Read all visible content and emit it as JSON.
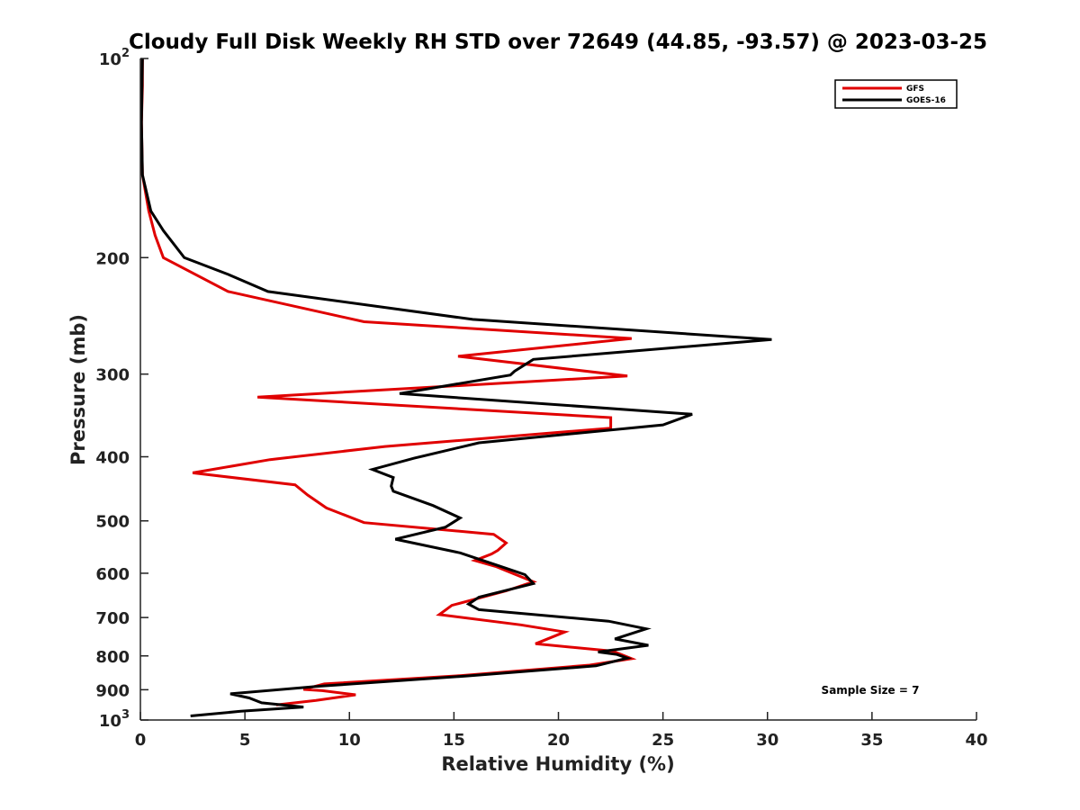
{
  "chart_data": {
    "type": "line",
    "title": "Cloudy Full Disk Weekly RH STD over 72649 (44.85, -93.57) @ 2023-03-25",
    "xlabel": "Relative Humidity (%)",
    "ylabel": "Pressure (mb)",
    "xlim": [
      0,
      40
    ],
    "ylim": [
      100,
      1000
    ],
    "y_scale": "log",
    "y_reversed": true,
    "x_ticks": [
      "0",
      "5",
      "10",
      "15",
      "20",
      "25",
      "30",
      "35",
      "40"
    ],
    "y_ticks": [
      {
        "value": 100,
        "base": "10",
        "exp": "2"
      },
      {
        "value": 200,
        "label": "200"
      },
      {
        "value": 300,
        "label": "300"
      },
      {
        "value": 400,
        "label": "400"
      },
      {
        "value": 500,
        "label": "500"
      },
      {
        "value": 600,
        "label": "600"
      },
      {
        "value": 700,
        "label": "700"
      },
      {
        "value": 800,
        "label": "800"
      },
      {
        "value": 900,
        "label": "900"
      },
      {
        "value": 1000,
        "base": "10",
        "exp": "3"
      }
    ],
    "grid": false,
    "legend_position": "top-right",
    "annotation": "Sample Size = 7",
    "series": [
      {
        "name": "GFS",
        "color": "#e00000",
        "points": [
          [
            0.1,
            100
          ],
          [
            0.1,
            110
          ],
          [
            0.05,
            125
          ],
          [
            0.1,
            150
          ],
          [
            0.4,
            170
          ],
          [
            0.7,
            185
          ],
          [
            1.1,
            200
          ],
          [
            4.2,
            225
          ],
          [
            10.7,
            250
          ],
          [
            23.5,
            265
          ],
          [
            15.2,
            282
          ],
          [
            23.3,
            302
          ],
          [
            5.6,
            325
          ],
          [
            22.5,
            349
          ],
          [
            22.5,
            362
          ],
          [
            11.7,
            386
          ],
          [
            6.2,
            404
          ],
          [
            2.5,
            423
          ],
          [
            7.4,
            441
          ],
          [
            8.0,
            457
          ],
          [
            8.9,
            478
          ],
          [
            10.7,
            503
          ],
          [
            16.9,
            524
          ],
          [
            17.5,
            540
          ],
          [
            17.1,
            554
          ],
          [
            16.8,
            561
          ],
          [
            16.0,
            574
          ],
          [
            17.0,
            586
          ],
          [
            18.8,
            618
          ],
          [
            17.5,
            638
          ],
          [
            14.9,
            671
          ],
          [
            14.3,
            693
          ],
          [
            18.2,
            718
          ],
          [
            20.3,
            736
          ],
          [
            18.9,
            767
          ],
          [
            22.6,
            787
          ],
          [
            23.5,
            808
          ],
          [
            21.5,
            826
          ],
          [
            15.3,
            857
          ],
          [
            8.8,
            882
          ],
          [
            7.8,
            899
          ],
          [
            8.7,
            903
          ],
          [
            10.3,
            916
          ],
          [
            8.4,
            934
          ],
          [
            6.5,
            949
          ]
        ]
      },
      {
        "name": "GOES-16",
        "color": "#000000",
        "points": [
          [
            0.1,
            100
          ],
          [
            0.05,
            125
          ],
          [
            0.1,
            150
          ],
          [
            0.5,
            170
          ],
          [
            1.1,
            182
          ],
          [
            2.1,
            200
          ],
          [
            4.2,
            212
          ],
          [
            6.1,
            225
          ],
          [
            15.9,
            248
          ],
          [
            30.2,
            266
          ],
          [
            18.8,
            285
          ],
          [
            17.9,
            297
          ],
          [
            17.7,
            301
          ],
          [
            12.4,
            321
          ],
          [
            26.4,
            345
          ],
          [
            25.0,
            358
          ],
          [
            16.2,
            381
          ],
          [
            13.1,
            402
          ],
          [
            11.1,
            418
          ],
          [
            12.1,
            430
          ],
          [
            12.0,
            443
          ],
          [
            12.1,
            451
          ],
          [
            14.0,
            474
          ],
          [
            15.3,
            495
          ],
          [
            14.6,
            511
          ],
          [
            12.2,
            533
          ],
          [
            15.3,
            559
          ],
          [
            17.1,
            584
          ],
          [
            18.4,
            603
          ],
          [
            18.8,
            622
          ],
          [
            16.2,
            652
          ],
          [
            15.7,
            668
          ],
          [
            16.2,
            681
          ],
          [
            22.4,
            709
          ],
          [
            24.2,
            728
          ],
          [
            22.7,
            754
          ],
          [
            24.3,
            771
          ],
          [
            21.9,
            789
          ],
          [
            22.8,
            796
          ],
          [
            23.3,
            806
          ],
          [
            21.8,
            828
          ],
          [
            15.6,
            858
          ],
          [
            8.6,
            889
          ],
          [
            4.3,
            913
          ],
          [
            5.2,
            926
          ],
          [
            5.8,
            942
          ],
          [
            7.8,
            956
          ],
          [
            4.8,
            970
          ],
          [
            2.4,
            986
          ]
        ]
      }
    ]
  }
}
